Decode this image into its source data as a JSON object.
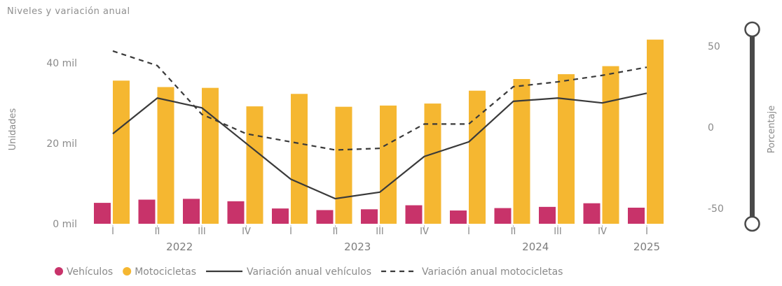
{
  "chart_data": {
    "type": "bar",
    "subtitle": "Niveles y variación anual",
    "categories": [
      "I",
      "II",
      "III",
      "IV",
      "I",
      "II",
      "III",
      "IV",
      "I",
      "II",
      "III",
      "IV",
      "I"
    ],
    "years": [
      {
        "label": "2022",
        "span": [
          0,
          3
        ]
      },
      {
        "label": "2023",
        "span": [
          4,
          7
        ]
      },
      {
        "label": "2024",
        "span": [
          8,
          11
        ]
      },
      {
        "label": "2025",
        "span": [
          12,
          12
        ]
      }
    ],
    "y_left": {
      "label": "Unidades",
      "ticks": [
        {
          "v": 0,
          "t": "0 mil"
        },
        {
          "v": 20000,
          "t": "20 mil"
        },
        {
          "v": 40000,
          "t": "40 mil"
        }
      ],
      "range": [
        0,
        50000
      ]
    },
    "y_right": {
      "label": "Porcentaje",
      "ticks": [
        {
          "v": -50,
          "t": "-50"
        },
        {
          "v": 0,
          "t": "0"
        },
        {
          "v": 50,
          "t": "50"
        }
      ],
      "range": [
        -60,
        60
      ]
    },
    "series": [
      {
        "name": "Vehículos",
        "kind": "bar",
        "axis": "left",
        "color": "#c8336a",
        "values": [
          5200,
          6000,
          6200,
          5600,
          3800,
          3400,
          3600,
          4600,
          3300,
          3900,
          4200,
          5100,
          4000
        ]
      },
      {
        "name": "Motocicletas",
        "kind": "bar",
        "axis": "left",
        "color": "#f5b731",
        "values": [
          35600,
          34000,
          33800,
          29200,
          32300,
          29100,
          29400,
          29900,
          33100,
          36000,
          37200,
          39200,
          45800
        ]
      },
      {
        "name": "Variación anual vehículos",
        "kind": "line",
        "axis": "right",
        "color": "#3a3a3a",
        "dash": "",
        "values": [
          -4,
          18,
          12,
          -10,
          -32,
          -44,
          -40,
          -18,
          -9,
          16,
          18,
          15,
          21
        ]
      },
      {
        "name": "Variación anual motocicletas",
        "kind": "line",
        "axis": "right",
        "color": "#3a3a3a",
        "dash": "7,6",
        "values": [
          47,
          38,
          8,
          -4,
          -9,
          -14,
          -13,
          2,
          2,
          25,
          28,
          32,
          37
        ]
      }
    ],
    "legend_position": "bottom"
  }
}
